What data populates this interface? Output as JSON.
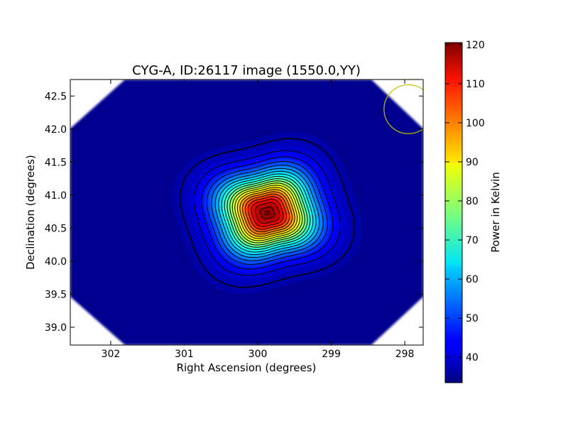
{
  "chart_data": {
    "type": "heatmap",
    "title": "CYG-A, ID:26117 image (1550.0,YY)",
    "xlabel": "Right Ascension (degrees)",
    "ylabel": "Declination (degrees)",
    "xlim": [
      302.55,
      297.75
    ],
    "ylim": [
      38.73,
      42.75
    ],
    "xticks": [
      302,
      301,
      300,
      299,
      298
    ],
    "xtick_labels": [
      "302",
      "301",
      "300",
      "299",
      "298"
    ],
    "yticks": [
      39.0,
      39.5,
      40.0,
      40.5,
      41.0,
      41.5,
      42.0,
      42.5
    ],
    "ytick_labels": [
      "39.0",
      "39.5",
      "40.0",
      "40.5",
      "41.0",
      "41.5",
      "42.0",
      "42.5"
    ],
    "colorbar": {
      "label": "Power in Kelvin",
      "range": [
        33.5,
        120.5
      ],
      "ticks": [
        40,
        50,
        60,
        70,
        80,
        90,
        100,
        110,
        120
      ],
      "tick_labels": [
        "40",
        "50",
        "60",
        "70",
        "80",
        "90",
        "100",
        "110",
        "120"
      ],
      "colormap": "jet"
    },
    "source": {
      "ra": 299.87,
      "dec": 40.73,
      "peak": 120,
      "background": 36
    },
    "contour_levels": [
      38,
      42,
      46,
      50,
      54,
      58,
      62,
      66,
      70,
      74,
      78,
      82,
      86,
      90,
      94,
      98,
      102,
      106,
      110,
      114,
      118
    ],
    "beam_circle": {
      "ra": 297.95,
      "dec": 42.3,
      "radius_deg": 0.37,
      "color": "#bfbf00"
    }
  }
}
